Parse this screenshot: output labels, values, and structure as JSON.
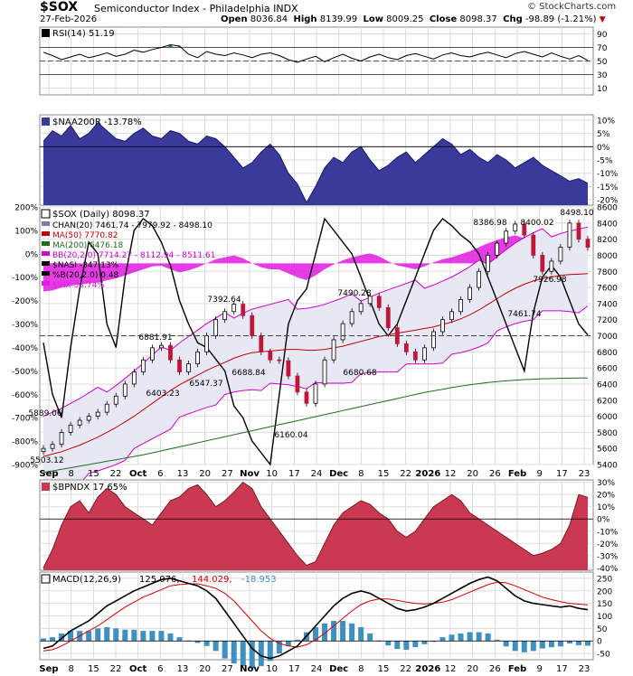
{
  "header": {
    "symbol": "$SOX",
    "name": "Semiconductor Index - Philadelphia",
    "exchange": "INDX",
    "date": "27-Feb-2026",
    "open_label": "Open",
    "open": "8036.84",
    "high_label": "High",
    "high": "8139.99",
    "low_label": "Low",
    "low": "8009.25",
    "close_label": "Close",
    "close": "8098.37",
    "chg_label": "Chg",
    "chg": "-98.89 (-1.21%)",
    "watermark": "© StockCharts.com"
  },
  "colors": {
    "rsi_overbought": "#3b7a3b",
    "naa_fill": "#3a3a9a",
    "price_up": "#000000",
    "price_down": "#c0163a",
    "ma50": "#c00000",
    "ma200": "#1f6b1f",
    "bb": "#d000d0",
    "bb_fill": "#e8e8f4",
    "nasi_fill": "#b0b0b0",
    "vix_fill": "#e01ae0",
    "spx_area": "#e8a4a4",
    "bpndx_fill": "#c93a52",
    "macd_line": "#000000",
    "signal_line": "#d00000",
    "hist": "#3f8fbf"
  },
  "x_axis": {
    "labels": [
      "Sep",
      "8",
      "15",
      "22",
      "Oct",
      "6",
      "13",
      "20",
      "27",
      "Nov",
      "10",
      "17",
      "24",
      "Dec",
      "8",
      "15",
      "22",
      "2026",
      "12",
      "20",
      "26",
      "Feb",
      "9",
      "17",
      "23"
    ]
  },
  "chart_data": [
    {
      "type": "line",
      "panel": "rsi",
      "title": "RSI(14) 51.19",
      "y_ticks": [
        "90",
        "70",
        "50",
        "30",
        "10"
      ],
      "ylim": [
        0,
        100
      ],
      "values": [
        63,
        58,
        52,
        56,
        60,
        55,
        58,
        62,
        57,
        60,
        66,
        63,
        67,
        70,
        74,
        72,
        60,
        55,
        64,
        60,
        58,
        62,
        59,
        55,
        60,
        62,
        58,
        52,
        48,
        53,
        57,
        49,
        55,
        60,
        54,
        50,
        56,
        60,
        55,
        52,
        58,
        61,
        57,
        53,
        59,
        62,
        58,
        56,
        60,
        63,
        59,
        55,
        61,
        64,
        60,
        56,
        62,
        57,
        53,
        58,
        51
      ]
    },
    {
      "type": "area",
      "panel": "naa200r",
      "title": "$NAA200R -13.78%",
      "y_ticks": [
        "10%",
        "5%",
        "0%",
        "-5%",
        "-10%",
        "-15%",
        "-20%"
      ],
      "ylim": [
        -22,
        12
      ],
      "values": [
        2,
        6,
        4,
        8,
        3,
        5,
        9,
        6,
        3,
        2,
        5,
        7,
        4,
        3,
        6,
        5,
        2,
        1,
        4,
        3,
        0,
        -4,
        -8,
        -6,
        -2,
        1,
        -3,
        -10,
        -14,
        -21,
        -15,
        -8,
        -4,
        -6,
        -2,
        0,
        -5,
        -9,
        -7,
        -4,
        -2,
        -6,
        -3,
        0,
        3,
        1,
        -3,
        -1,
        -4,
        -6,
        -3,
        -5,
        -8,
        -6,
        -4,
        -7,
        -9,
        -11,
        -13,
        -12,
        -13.78
      ]
    },
    {
      "type": "line",
      "panel": "price",
      "title": "$SOX (Daily) 8098.37",
      "legend": [
        "CHAN(20) 7461.74 - 7979.92 - 8498.10",
        "MA(50) 7770.82",
        "MA(200) 6476.18",
        "BB(20,2.0) 7714.27 - 8112.94 - 8511.61",
        "$NASI -347.13%",
        "%B(20,2.0) 0.48",
        "$VIX 33.74%"
      ],
      "y_ticks_right": [
        "8600",
        "8400",
        "8200",
        "8000",
        "7800",
        "7600",
        "7400",
        "7200",
        "7000",
        "6800",
        "6600",
        "6400",
        "6200",
        "6000",
        "5800",
        "5600",
        "5400"
      ],
      "y_ticks_left": [
        "200%",
        "100%",
        "0%",
        "-100%",
        "-200%",
        "-300%",
        "-400%",
        "-500%",
        "-600%",
        "-700%",
        "-800%",
        "-900%"
      ],
      "ylim": [
        5400,
        8600
      ],
      "annotations": [
        "8498.10",
        "8386.98",
        "8400.02",
        "7926.98",
        "7461.74",
        "7490.28",
        "7392.64",
        "6881.91",
        "6688.84",
        "6680.68",
        "6547.37",
        "6403.23",
        "5889.06",
        "5503.12",
        "6160.04"
      ],
      "close": [
        5600,
        5650,
        5800,
        5890,
        5950,
        6000,
        6050,
        6150,
        6250,
        6400,
        6550,
        6700,
        6850,
        6880,
        6700,
        6550,
        6650,
        6800,
        7000,
        7200,
        7300,
        7392,
        7250,
        7000,
        6800,
        6700,
        6690,
        6500,
        6300,
        6160,
        6400,
        6700,
        6950,
        7150,
        7300,
        7400,
        7490,
        7350,
        7100,
        6900,
        6800,
        6700,
        6850,
        7050,
        7200,
        7300,
        7450,
        7600,
        7800,
        8000,
        8150,
        8300,
        8387,
        8250,
        8000,
        7800,
        7927,
        8100,
        8400,
        8200,
        8098
      ],
      "ma50": [
        5500,
        5530,
        5560,
        5600,
        5640,
        5690,
        5740,
        5800,
        5860,
        5930,
        6000,
        6080,
        6160,
        6240,
        6320,
        6390,
        6450,
        6510,
        6570,
        6620,
        6670,
        6720,
        6760,
        6790,
        6800,
        6810,
        6820,
        6830,
        6830,
        6820,
        6820,
        6830,
        6850,
        6870,
        6900,
        6930,
        6960,
        6990,
        7010,
        7030,
        7050,
        7070,
        7090,
        7110,
        7140,
        7170,
        7210,
        7260,
        7320,
        7390,
        7460,
        7530,
        7590,
        7640,
        7680,
        7710,
        7730,
        7750,
        7760,
        7765,
        7771
      ],
      "ma200": [
        5300,
        5320,
        5340,
        5360,
        5380,
        5400,
        5420,
        5440,
        5460,
        5480,
        5500,
        5520,
        5545,
        5570,
        5595,
        5620,
        5645,
        5670,
        5695,
        5720,
        5745,
        5770,
        5795,
        5820,
        5845,
        5870,
        5895,
        5920,
        5945,
        5970,
        5995,
        6020,
        6045,
        6070,
        6095,
        6120,
        6145,
        6170,
        6195,
        6220,
        6245,
        6270,
        6295,
        6315,
        6335,
        6355,
        6375,
        6390,
        6405,
        6420,
        6430,
        6440,
        6448,
        6455,
        6460,
        6465,
        6468,
        6471,
        6473,
        6475,
        6476
      ],
      "nasi_pct": [
        -380,
        -600,
        -700,
        -400,
        -150,
        50,
        0,
        -300,
        -400,
        -100,
        100,
        150,
        120,
        50,
        -50,
        -200,
        -300,
        -380,
        -400,
        -450,
        -500,
        -650,
        -700,
        -800,
        -850,
        -900,
        -600,
        -300,
        -200,
        -150,
        0,
        150,
        100,
        50,
        0,
        -100,
        -200,
        -300,
        -350,
        -300,
        -200,
        -100,
        0,
        100,
        150,
        120,
        80,
        50,
        0,
        -100,
        -200,
        -300,
        -400,
        -500,
        -250,
        -100,
        -50,
        -100,
        -200,
        -300,
        -347
      ]
    },
    {
      "type": "area",
      "panel": "bpndx",
      "title": "$BPNDX 17.65%",
      "y_ticks": [
        "30%",
        "20%",
        "10%",
        "0%",
        "-10%",
        "-20%",
        "-30%",
        "-40%"
      ],
      "ylim": [
        -42,
        32
      ],
      "values": [
        -40,
        -25,
        -5,
        10,
        15,
        5,
        18,
        25,
        20,
        10,
        5,
        0,
        -5,
        5,
        15,
        18,
        25,
        28,
        20,
        10,
        15,
        22,
        30,
        25,
        10,
        0,
        -10,
        -20,
        -30,
        -38,
        -35,
        -20,
        -5,
        5,
        10,
        15,
        12,
        5,
        0,
        -10,
        -15,
        -10,
        0,
        10,
        15,
        20,
        15,
        5,
        0,
        -5,
        -10,
        -15,
        -20,
        -25,
        -30,
        -28,
        -25,
        -20,
        -5,
        20,
        17.65
      ]
    },
    {
      "type": "line",
      "panel": "macd",
      "title": "MACD(12,26,9)",
      "title_values": [
        "125.076,",
        "144.029,",
        "-18.953"
      ],
      "y_ticks": [
        "250",
        "200",
        "150",
        "100",
        "50",
        "0",
        "-50"
      ],
      "ylim": [
        -75,
        275
      ],
      "macd": [
        -30,
        -20,
        10,
        40,
        60,
        80,
        110,
        140,
        160,
        180,
        200,
        215,
        230,
        245,
        250,
        240,
        230,
        220,
        200,
        170,
        120,
        70,
        20,
        -30,
        -60,
        -70,
        -60,
        -40,
        -20,
        20,
        60,
        100,
        140,
        170,
        190,
        200,
        190,
        170,
        150,
        130,
        120,
        125,
        135,
        150,
        170,
        190,
        210,
        230,
        245,
        255,
        240,
        210,
        180,
        160,
        150,
        145,
        140,
        135,
        140,
        130,
        125
      ],
      "signal": [
        -40,
        -35,
        -20,
        0,
        20,
        40,
        60,
        85,
        110,
        135,
        155,
        175,
        190,
        205,
        220,
        225,
        228,
        228,
        220,
        210,
        190,
        160,
        120,
        80,
        40,
        10,
        -10,
        -20,
        -25,
        -15,
        5,
        30,
        60,
        90,
        120,
        145,
        160,
        168,
        168,
        162,
        155,
        150,
        148,
        150,
        155,
        165,
        180,
        195,
        210,
        225,
        235,
        232,
        220,
        205,
        190,
        175,
        165,
        157,
        150,
        147,
        144
      ],
      "histogram": [
        10,
        15,
        30,
        40,
        40,
        40,
        50,
        55,
        50,
        45,
        45,
        40,
        40,
        40,
        30,
        15,
        2,
        -8,
        -20,
        -40,
        -70,
        -90,
        -100,
        -110,
        -100,
        -80,
        -50,
        -20,
        5,
        35,
        55,
        70,
        80,
        80,
        70,
        55,
        30,
        2,
        -18,
        -32,
        -35,
        -25,
        -13,
        0,
        15,
        25,
        30,
        35,
        35,
        30,
        5,
        -22,
        -40,
        -45,
        -40,
        -30,
        -25,
        -22,
        -10,
        -17,
        -19
      ]
    }
  ]
}
